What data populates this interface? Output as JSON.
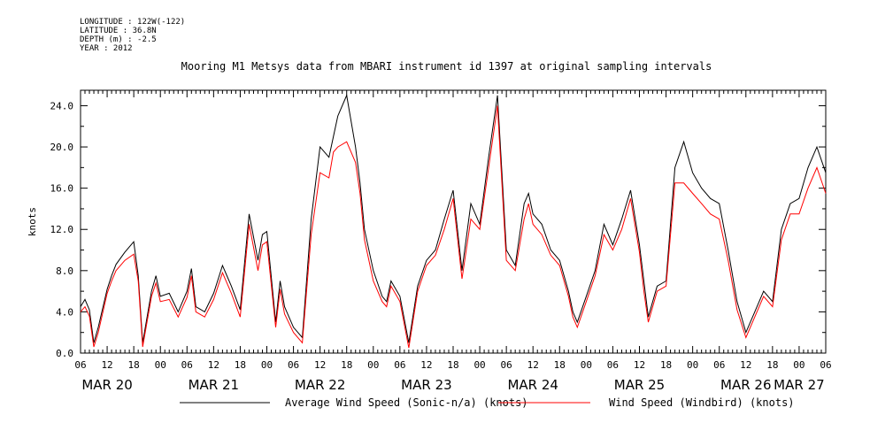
{
  "metadata": {
    "longitude": "LONGITUDE : 122W(-122)",
    "latitude": "LATITUDE : 36.8N",
    "depth": "DEPTH (m) : -2.5",
    "year": "YEAR : 2012"
  },
  "chart_data": {
    "type": "line",
    "title": "Mooring M1 Metsys data from MBARI instrument id 1397 at original sampling intervals",
    "xlabel": "",
    "ylabel": "knots",
    "ylim": [
      0,
      25.5
    ],
    "yticks": [
      0.0,
      4.0,
      8.0,
      12.0,
      16.0,
      20.0,
      24.0
    ],
    "ytick_labels": [
      "0.0",
      "4.0",
      "8.0",
      "12.0",
      "16.0",
      "20.0",
      "24.0"
    ],
    "x_units": "hours since MAR 20 00:00",
    "xlim": [
      6,
      174
    ],
    "hour_ticks": [
      "06",
      "12",
      "18",
      "00",
      "06",
      "12",
      "18",
      "00",
      "06",
      "12",
      "18",
      "00",
      "06",
      "12",
      "18",
      "00",
      "06",
      "12",
      "18",
      "00",
      "06",
      "12",
      "18",
      "00",
      "06",
      "12",
      "18",
      "00",
      "06"
    ],
    "day_labels": [
      "MAR 20",
      "MAR 21",
      "MAR 22",
      "MAR 23",
      "MAR 24",
      "MAR 25",
      "MAR 26",
      "MAR 27"
    ],
    "grid": false,
    "series": [
      {
        "name": "Average Wind Speed (Sonic-n/a) (knots)",
        "color": "#000000",
        "x": [
          6,
          7,
          8,
          9,
          10,
          12,
          13,
          14,
          16,
          18,
          19,
          20,
          22,
          23,
          24,
          26,
          28,
          30,
          31,
          32,
          34,
          36,
          38,
          40,
          42,
          44,
          46,
          47,
          48,
          50,
          51,
          52,
          54,
          56,
          58,
          60,
          62,
          63,
          64,
          66,
          68,
          69,
          70,
          72,
          74,
          75,
          76,
          78,
          80,
          82,
          84,
          86,
          88,
          90,
          92,
          94,
          96,
          98,
          100,
          102,
          104,
          106,
          107,
          108,
          110,
          112,
          114,
          116,
          117,
          118,
          120,
          122,
          124,
          126,
          128,
          130,
          132,
          133,
          134,
          136,
          138,
          140,
          142,
          144,
          146,
          148,
          150,
          152,
          154,
          156,
          158,
          160,
          162,
          164,
          166,
          168,
          170,
          172,
          174
        ],
        "y": [
          4.5,
          5.2,
          4.2,
          1.0,
          2.5,
          6.2,
          7.5,
          8.6,
          9.8,
          10.8,
          7.5,
          1.0,
          6.0,
          7.5,
          5.5,
          5.8,
          4.0,
          6.0,
          8.2,
          4.5,
          4.0,
          5.8,
          8.5,
          6.5,
          4.2,
          13.5,
          9.0,
          11.5,
          11.8,
          3.0,
          7.0,
          4.5,
          2.5,
          1.5,
          13.0,
          20.0,
          19.0,
          21.0,
          23.0,
          25.0,
          20.0,
          16.5,
          12.0,
          8.0,
          5.5,
          5.0,
          7.0,
          5.5,
          1.0,
          6.5,
          9.0,
          10.0,
          13.0,
          15.8,
          8.0,
          14.5,
          12.5,
          19.0,
          25.0,
          10.0,
          8.5,
          14.5,
          15.5,
          13.5,
          12.5,
          10.0,
          9.0,
          6.0,
          4.0,
          3.0,
          5.5,
          8.0,
          12.5,
          10.5,
          13.0,
          15.8,
          10.5,
          7.0,
          3.5,
          6.5,
          7.0,
          18.0,
          20.5,
          17.5,
          16.0,
          15.0,
          14.5,
          10.0,
          5.0,
          2.0,
          4.0,
          6.0,
          5.0,
          12.0,
          14.5,
          15.0,
          18.0,
          20.0,
          17.5
        ]
      },
      {
        "name": "Wind Speed (Windbird) (knots)",
        "color": "#ff0000",
        "x": [
          6,
          7,
          8,
          9,
          10,
          12,
          13,
          14,
          16,
          18,
          19,
          20,
          22,
          23,
          24,
          26,
          28,
          30,
          31,
          32,
          34,
          36,
          38,
          40,
          42,
          44,
          46,
          47,
          48,
          50,
          51,
          52,
          54,
          56,
          58,
          60,
          62,
          63,
          64,
          66,
          68,
          69,
          70,
          72,
          74,
          75,
          76,
          78,
          80,
          82,
          84,
          86,
          88,
          90,
          92,
          94,
          96,
          98,
          100,
          102,
          104,
          106,
          107,
          108,
          110,
          112,
          114,
          116,
          117,
          118,
          120,
          122,
          124,
          126,
          128,
          130,
          132,
          133,
          134,
          136,
          138,
          140,
          142,
          144,
          146,
          148,
          150,
          152,
          154,
          156,
          158,
          160,
          162,
          164,
          166,
          168,
          170,
          172,
          174
        ],
        "y": [
          4.0,
          4.5,
          3.6,
          0.6,
          2.0,
          5.8,
          7.0,
          8.0,
          9.0,
          9.6,
          7.0,
          0.6,
          5.5,
          6.8,
          5.0,
          5.2,
          3.5,
          5.4,
          7.5,
          4.0,
          3.5,
          5.2,
          7.8,
          5.8,
          3.5,
          12.5,
          8.0,
          10.5,
          10.8,
          2.5,
          6.2,
          3.8,
          2.0,
          1.0,
          11.5,
          17.5,
          17.0,
          19.5,
          20.0,
          20.5,
          18.5,
          15.5,
          11.0,
          7.0,
          5.0,
          4.5,
          6.5,
          5.0,
          0.5,
          6.0,
          8.5,
          9.5,
          12.0,
          15.0,
          7.2,
          13.0,
          12.0,
          18.0,
          24.0,
          9.0,
          8.0,
          13.0,
          14.5,
          12.5,
          11.5,
          9.5,
          8.5,
          5.5,
          3.5,
          2.5,
          5.0,
          7.5,
          11.5,
          10.0,
          12.0,
          15.0,
          9.8,
          6.0,
          3.0,
          6.0,
          6.5,
          16.5,
          16.5,
          15.5,
          14.5,
          13.5,
          13.0,
          9.0,
          4.2,
          1.5,
          3.5,
          5.5,
          4.5,
          11.0,
          13.5,
          13.5,
          16.0,
          18.0,
          15.5
        ]
      }
    ]
  }
}
